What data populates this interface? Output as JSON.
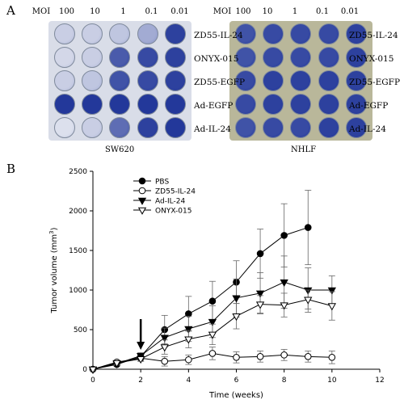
{
  "panel_a": {
    "label": "A",
    "moi_header": [
      "MOI",
      "100",
      "10",
      "1",
      "0.1",
      "0.01"
    ],
    "rows": [
      "ZD55-IL-24",
      "ONYX-015",
      "ZD55-EGFP",
      "Ad-EGFP",
      "Ad-IL-24"
    ],
    "cell_lines": [
      "SW620",
      "NHLF"
    ],
    "plates": [
      {
        "cells": "SW620",
        "stain_level": [
          [
            0.15,
            0.15,
            0.2,
            0.35,
            0.95
          ],
          [
            0.1,
            0.15,
            0.8,
            0.9,
            0.95
          ],
          [
            0.15,
            0.2,
            0.85,
            0.9,
            0.95
          ],
          [
            1.0,
            1.0,
            1.0,
            1.0,
            1.0
          ],
          [
            0.05,
            0.15,
            0.7,
            0.95,
            1.0
          ]
        ]
      },
      {
        "cells": "NHLF",
        "stain_level": [
          [
            0.85,
            0.9,
            0.9,
            0.9,
            0.95
          ],
          [
            0.85,
            0.9,
            0.9,
            0.9,
            0.95
          ],
          [
            0.9,
            0.95,
            0.95,
            0.95,
            0.95
          ],
          [
            0.9,
            0.95,
            0.95,
            0.95,
            0.95
          ],
          [
            0.85,
            0.9,
            0.9,
            0.95,
            0.95
          ]
        ]
      }
    ],
    "stain_colors": {
      "empty": "#e6e9f1",
      "full": "#23389a"
    }
  },
  "panel_b": {
    "label": "B"
  },
  "chart_data": {
    "type": "line",
    "xlabel": "Time (weeks)",
    "ylabel": "Tumor volume (mm",
    "ylabel_sup": "3",
    "ylabel_end": ")",
    "xlim": [
      0,
      12
    ],
    "ylim": [
      0,
      2500
    ],
    "xticks": [
      0,
      2,
      4,
      6,
      8,
      10,
      12
    ],
    "yticks": [
      0,
      500,
      1000,
      1500,
      2000,
      2500
    ],
    "grid": false,
    "legend_position": "top-left",
    "arrow_at_x": 2,
    "series": [
      {
        "name": "PBS",
        "marker": "circle-filled",
        "x": [
          0,
          1,
          2,
          3,
          4,
          5,
          6,
          7,
          8,
          9
        ],
        "y": [
          0,
          60,
          160,
          500,
          700,
          860,
          1100,
          1460,
          1690,
          1790
        ],
        "err": [
          0,
          20,
          40,
          180,
          220,
          250,
          270,
          310,
          400,
          470
        ]
      },
      {
        "name": "ZD55-IL-24",
        "marker": "circle-open",
        "x": [
          0,
          1,
          2,
          3,
          4,
          5,
          6,
          7,
          8,
          9,
          10
        ],
        "y": [
          0,
          90,
          140,
          100,
          120,
          200,
          150,
          160,
          180,
          160,
          150
        ],
        "err": [
          0,
          20,
          40,
          60,
          60,
          80,
          70,
          70,
          70,
          70,
          80
        ]
      },
      {
        "name": "Ad-IL-24",
        "marker": "triangle-down-filled",
        "x": [
          0,
          1,
          2,
          3,
          4,
          5,
          6,
          7,
          8,
          9,
          10
        ],
        "y": [
          0,
          70,
          170,
          400,
          510,
          600,
          900,
          960,
          1100,
          1000,
          1000
        ],
        "err": [
          0,
          20,
          40,
          120,
          160,
          200,
          240,
          260,
          330,
          280,
          180
        ]
      },
      {
        "name": "ONYX-015",
        "marker": "triangle-down-open",
        "x": [
          0,
          1,
          2,
          3,
          4,
          5,
          6,
          7,
          8,
          9,
          10
        ],
        "y": [
          0,
          80,
          130,
          280,
          380,
          440,
          670,
          820,
          810,
          880,
          800
        ],
        "err": [
          0,
          20,
          30,
          90,
          110,
          130,
          160,
          110,
          150,
          120,
          180
        ]
      }
    ]
  }
}
